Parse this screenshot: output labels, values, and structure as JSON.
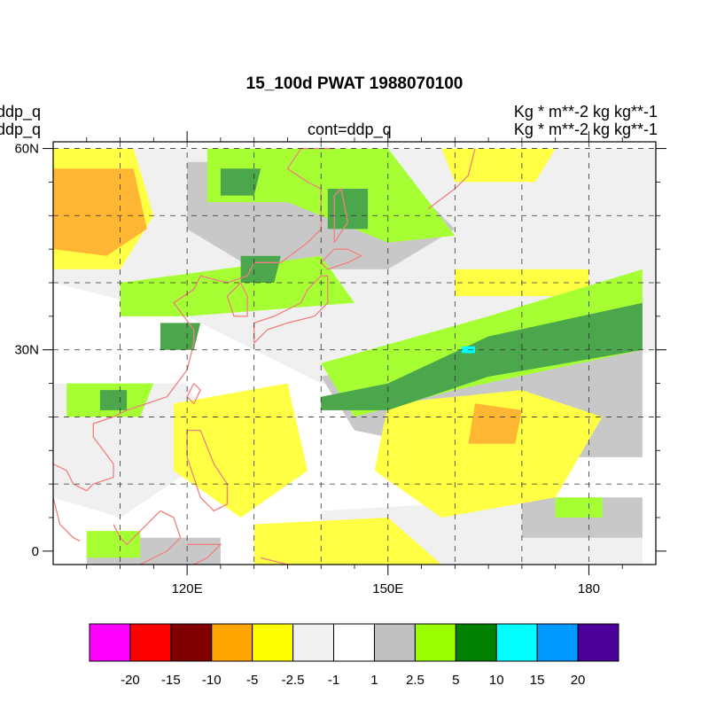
{
  "title": "15_100d PWAT  1988070100",
  "left_labels": [
    "ddp_q",
    "ddp_q"
  ],
  "center_label": "cont=ddp_q",
  "right_labels": [
    "Kg  * m**-2 kg kg**-1",
    "Kg  * m**-2 kg kg**-1"
  ],
  "map": {
    "lat_range": [
      -2,
      61
    ],
    "lon_range": [
      100,
      190
    ],
    "lat_ticks": [
      {
        "value": 60,
        "label": "60N"
      },
      {
        "value": 30,
        "label": "30N"
      },
      {
        "value": 0,
        "label": "0"
      }
    ],
    "lon_ticks": [
      {
        "value": 120,
        "label": "120E"
      },
      {
        "value": 150,
        "label": "150E"
      },
      {
        "value": 180,
        "label": "180"
      }
    ],
    "grid_lats": [
      10,
      20,
      30,
      40,
      50,
      60
    ],
    "grid_lons": [
      110,
      120,
      130,
      140,
      150,
      160,
      170,
      180
    ],
    "coast_color": "#f08080",
    "anomaly_regions": [
      {
        "level": "lightgray",
        "points": [
          [
            100,
            60
          ],
          [
            190,
            60
          ],
          [
            190,
            30
          ],
          [
            160,
            22
          ],
          [
            140,
            25
          ],
          [
            120,
            35
          ],
          [
            100,
            40
          ]
        ]
      },
      {
        "level": "lightgray",
        "points": [
          [
            100,
            25
          ],
          [
            120,
            25
          ],
          [
            125,
            15
          ],
          [
            110,
            5
          ],
          [
            100,
            8
          ]
        ]
      },
      {
        "level": "lightgray",
        "points": [
          [
            140,
            6
          ],
          [
            175,
            8
          ],
          [
            188,
            4
          ],
          [
            188,
            -2
          ],
          [
            140,
            -2
          ]
        ]
      },
      {
        "level": "gray",
        "points": [
          [
            120,
            58
          ],
          [
            150,
            58
          ],
          [
            160,
            48
          ],
          [
            150,
            42
          ],
          [
            130,
            42
          ],
          [
            120,
            48
          ]
        ]
      },
      {
        "level": "gray",
        "points": [
          [
            140,
            26
          ],
          [
            165,
            31
          ],
          [
            188,
            38
          ],
          [
            188,
            14
          ],
          [
            165,
            14
          ],
          [
            145,
            18
          ]
        ]
      },
      {
        "level": "gray",
        "points": [
          [
            170,
            8
          ],
          [
            188,
            8
          ],
          [
            188,
            2
          ],
          [
            170,
            2
          ]
        ]
      },
      {
        "level": "gray",
        "points": [
          [
            105,
            2
          ],
          [
            125,
            2
          ],
          [
            125,
            -2
          ],
          [
            105,
            -2
          ]
        ]
      },
      {
        "level": "yellow",
        "points": [
          [
            100,
            60
          ],
          [
            112,
            60
          ],
          [
            115,
            50
          ],
          [
            110,
            42
          ],
          [
            100,
            42
          ]
        ]
      },
      {
        "level": "yellow",
        "points": [
          [
            158,
            60
          ],
          [
            175,
            60
          ],
          [
            172,
            55
          ],
          [
            160,
            55
          ]
        ]
      },
      {
        "level": "yellow",
        "points": [
          [
            160,
            42
          ],
          [
            180,
            42
          ],
          [
            180,
            38
          ],
          [
            160,
            38
          ]
        ]
      },
      {
        "level": "yellow",
        "points": [
          [
            118,
            22
          ],
          [
            135,
            25
          ],
          [
            138,
            12
          ],
          [
            128,
            5
          ],
          [
            118,
            12
          ]
        ]
      },
      {
        "level": "yellow",
        "points": [
          [
            150,
            22
          ],
          [
            170,
            24
          ],
          [
            182,
            20
          ],
          [
            175,
            8
          ],
          [
            158,
            5
          ],
          [
            148,
            12
          ]
        ]
      },
      {
        "level": "yellow",
        "points": [
          [
            130,
            4
          ],
          [
            150,
            5
          ],
          [
            158,
            -2
          ],
          [
            130,
            -2
          ]
        ]
      },
      {
        "level": "orange",
        "points": [
          [
            100,
            57
          ],
          [
            112,
            57
          ],
          [
            114,
            48
          ],
          [
            108,
            44
          ],
          [
            100,
            45
          ]
        ]
      },
      {
        "level": "orange",
        "points": [
          [
            163,
            22
          ],
          [
            170,
            21
          ],
          [
            169,
            16
          ],
          [
            162,
            16
          ]
        ]
      },
      {
        "level": "lime",
        "points": [
          [
            123,
            60
          ],
          [
            150,
            60
          ],
          [
            160,
            47
          ],
          [
            150,
            46
          ],
          [
            135,
            52
          ],
          [
            123,
            52
          ]
        ]
      },
      {
        "level": "lime",
        "points": [
          [
            110,
            40
          ],
          [
            140,
            44
          ],
          [
            145,
            37
          ],
          [
            120,
            35
          ],
          [
            110,
            35
          ]
        ]
      },
      {
        "level": "lime",
        "points": [
          [
            140,
            28
          ],
          [
            165,
            35
          ],
          [
            188,
            42
          ],
          [
            188,
            30
          ],
          [
            160,
            24
          ],
          [
            145,
            20
          ]
        ]
      },
      {
        "level": "lime",
        "points": [
          [
            102,
            25
          ],
          [
            115,
            25
          ],
          [
            113,
            20
          ],
          [
            102,
            20
          ]
        ]
      },
      {
        "level": "lime",
        "points": [
          [
            105,
            3
          ],
          [
            113,
            3
          ],
          [
            113,
            -1
          ],
          [
            105,
            -1
          ]
        ]
      },
      {
        "level": "lime",
        "points": [
          [
            175,
            8
          ],
          [
            182,
            8
          ],
          [
            182,
            5
          ],
          [
            175,
            5
          ]
        ]
      },
      {
        "level": "darkgreen",
        "points": [
          [
            125,
            57
          ],
          [
            131,
            57
          ],
          [
            130,
            53
          ],
          [
            125,
            53
          ]
        ]
      },
      {
        "level": "darkgreen",
        "points": [
          [
            141,
            54
          ],
          [
            147,
            54
          ],
          [
            147,
            48
          ],
          [
            141,
            48
          ]
        ]
      },
      {
        "level": "darkgreen",
        "points": [
          [
            128,
            44
          ],
          [
            134,
            44
          ],
          [
            133,
            40
          ],
          [
            128,
            40
          ]
        ]
      },
      {
        "level": "darkgreen",
        "points": [
          [
            116,
            34
          ],
          [
            122,
            34
          ],
          [
            121,
            30
          ],
          [
            116,
            30
          ]
        ]
      },
      {
        "level": "darkgreen",
        "points": [
          [
            107,
            24
          ],
          [
            111,
            24
          ],
          [
            111,
            21
          ],
          [
            107,
            21
          ]
        ]
      },
      {
        "level": "darkgreen",
        "points": [
          [
            140,
            23
          ],
          [
            150,
            25
          ],
          [
            165,
            32
          ],
          [
            188,
            37
          ],
          [
            188,
            30
          ],
          [
            165,
            26
          ],
          [
            150,
            21
          ],
          [
            140,
            21
          ]
        ]
      },
      {
        "level": "cyan",
        "points": [
          [
            161,
            30.5
          ],
          [
            163,
            30.5
          ],
          [
            163,
            29.5
          ],
          [
            161,
            29.5
          ]
        ]
      }
    ],
    "coastlines": [
      [
        [
          121,
          31
        ],
        [
          121,
          33
        ],
        [
          118,
          37
        ],
        [
          121,
          39
        ],
        [
          122,
          41
        ],
        [
          126,
          40
        ],
        [
          129,
          41
        ],
        [
          130,
          43
        ],
        [
          134,
          43
        ],
        [
          138,
          46
        ],
        [
          140,
          48
        ],
        [
          140,
          54
        ],
        [
          138,
          55
        ],
        [
          135,
          57
        ],
        [
          137,
          60
        ],
        [
          142,
          60
        ]
      ],
      [
        [
          121,
          31
        ],
        [
          120,
          27
        ],
        [
          117,
          23
        ],
        [
          111,
          21
        ],
        [
          109,
          20
        ],
        [
          106,
          19
        ],
        [
          106,
          17
        ],
        [
          109,
          13
        ],
        [
          109,
          11
        ],
        [
          106,
          10
        ],
        [
          105,
          9
        ],
        [
          103,
          10
        ],
        [
          102,
          12
        ],
        [
          100,
          13
        ]
      ],
      [
        [
          100,
          8
        ],
        [
          101,
          4
        ],
        [
          103,
          2
        ],
        [
          104,
          1.5
        ]
      ],
      [
        [
          126,
          38
        ],
        [
          127,
          35
        ],
        [
          129,
          35
        ],
        [
          129,
          38
        ],
        [
          128,
          40
        ],
        [
          126,
          38
        ]
      ],
      [
        [
          130,
          31
        ],
        [
          132,
          33
        ],
        [
          135,
          34
        ],
        [
          139,
          35
        ],
        [
          141,
          37
        ],
        [
          141,
          41
        ],
        [
          140,
          41
        ],
        [
          138,
          39
        ],
        [
          137,
          37
        ],
        [
          133,
          35
        ],
        [
          130,
          34
        ],
        [
          130,
          31
        ]
      ],
      [
        [
          141,
          42
        ],
        [
          144,
          43
        ],
        [
          146,
          44
        ],
        [
          144,
          45
        ],
        [
          142,
          45
        ],
        [
          140,
          43
        ],
        [
          141,
          42
        ]
      ],
      [
        [
          142,
          46
        ],
        [
          144,
          49
        ],
        [
          143,
          54
        ],
        [
          142,
          53
        ],
        [
          142,
          46
        ]
      ],
      [
        [
          156,
          51
        ],
        [
          160,
          54
        ],
        [
          162,
          56
        ],
        [
          163,
          60
        ]
      ],
      [
        [
          121,
          25
        ],
        [
          122,
          24
        ],
        [
          121,
          22
        ],
        [
          120,
          23
        ],
        [
          121,
          25
        ]
      ],
      [
        [
          120,
          18
        ],
        [
          122,
          18
        ],
        [
          124,
          13
        ],
        [
          126,
          10
        ],
        [
          126,
          7
        ],
        [
          124,
          6
        ],
        [
          122,
          8
        ],
        [
          121,
          11
        ],
        [
          120,
          14
        ],
        [
          120,
          18
        ]
      ],
      [
        [
          109,
          4
        ],
        [
          110,
          2
        ],
        [
          111,
          1
        ],
        [
          112,
          2
        ],
        [
          114,
          4
        ],
        [
          116,
          6
        ],
        [
          118,
          5
        ],
        [
          119,
          2
        ],
        [
          117,
          0
        ],
        [
          113,
          -2
        ]
      ],
      [
        [
          120,
          1
        ],
        [
          123,
          1
        ],
        [
          125,
          1
        ],
        [
          123,
          -1
        ],
        [
          121,
          -2
        ]
      ],
      [
        [
          131,
          -1
        ],
        [
          135,
          -2
        ]
      ]
    ]
  },
  "colorbar": {
    "colors": [
      "#ff00ff",
      "#ff0000",
      "#800000",
      "#ffa500",
      "#ffff00",
      "#f0f0f0",
      "#ffffff",
      "#c0c0c0",
      "#99ff00",
      "#008000",
      "#00ffff",
      "#0099ff",
      "#4b0099"
    ],
    "labels": [
      "-20",
      "-15",
      "-10",
      "-5",
      "-2.5",
      "-1",
      "1",
      "2.5",
      "5",
      "10",
      "15",
      "20"
    ]
  },
  "palette": {
    "lightgray": "#f0f0f0",
    "gray": "#c8c8c8",
    "yellow": "#ffff44",
    "orange": "#ffb733",
    "lime": "#a6ff33",
    "darkgreen": "#4ca64c",
    "cyan": "#00ffff"
  }
}
